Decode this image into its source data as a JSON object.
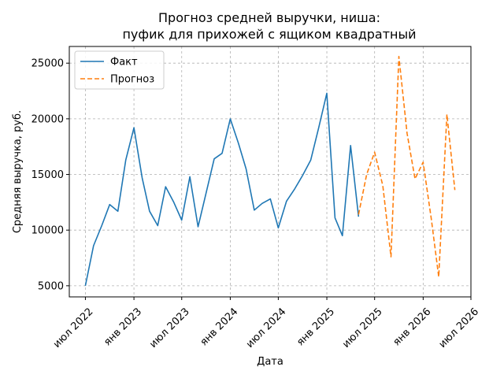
{
  "chart_data": {
    "type": "line",
    "title_line1": "Прогноз средней выручки, ниша:",
    "title_line2": "пуфик для прихожей с ящиком квадратный",
    "xlabel": "Дата",
    "ylabel": "Средняя выручка, руб.",
    "x_ticks": [
      {
        "date": "2022-07-01",
        "label": "июл 2022"
      },
      {
        "date": "2023-01-01",
        "label": "янв 2023"
      },
      {
        "date": "2023-07-01",
        "label": "июл 2023"
      },
      {
        "date": "2024-01-01",
        "label": "янв 2024"
      },
      {
        "date": "2024-07-01",
        "label": "июл 2024"
      },
      {
        "date": "2025-01-01",
        "label": "янв 2025"
      },
      {
        "date": "2025-07-01",
        "label": "июл 2025"
      },
      {
        "date": "2026-01-01",
        "label": "янв 2026"
      },
      {
        "date": "2026-07-01",
        "label": "июл 2026"
      }
    ],
    "y_ticks": [
      5000,
      10000,
      15000,
      20000,
      25000
    ],
    "xlim": [
      "2022-05-01",
      "2026-07-01"
    ],
    "ylim": [
      4000,
      26500
    ],
    "grid": true,
    "legend_position": "top-left",
    "series": [
      {
        "name": "Факт",
        "color": "#1f77b4",
        "style": "solid",
        "x": [
          "2022-07-01",
          "2022-08-01",
          "2022-09-01",
          "2022-10-01",
          "2022-11-01",
          "2022-12-01",
          "2023-01-01",
          "2023-02-01",
          "2023-03-01",
          "2023-04-01",
          "2023-05-01",
          "2023-06-01",
          "2023-07-01",
          "2023-08-01",
          "2023-09-01",
          "2023-10-01",
          "2023-11-01",
          "2023-12-01",
          "2024-01-01",
          "2024-02-01",
          "2024-03-01",
          "2024-04-01",
          "2024-05-01",
          "2024-06-01",
          "2024-07-01",
          "2024-08-01",
          "2024-09-01",
          "2024-10-01",
          "2024-11-01",
          "2024-12-01",
          "2025-01-01",
          "2025-02-01",
          "2025-03-01",
          "2025-04-01",
          "2025-05-01"
        ],
        "y": [
          5000,
          8600,
          10400,
          12300,
          11700,
          16300,
          19200,
          14700,
          11700,
          10400,
          13900,
          12500,
          10900,
          14800,
          10300,
          13300,
          16400,
          16900,
          20000,
          17800,
          15500,
          11800,
          12400,
          12800,
          10200,
          12600,
          13700,
          14900,
          16300,
          19200,
          22300,
          11100,
          9500,
          17600,
          11200
        ]
      },
      {
        "name": "Прогноз",
        "color": "#ff7f0e",
        "style": "dashed",
        "x": [
          "2025-05-01",
          "2025-06-01",
          "2025-07-01",
          "2025-08-01",
          "2025-09-01",
          "2025-10-01",
          "2025-11-01",
          "2025-12-01",
          "2026-01-01",
          "2026-02-01",
          "2026-03-01",
          "2026-04-01",
          "2026-05-01"
        ],
        "y": [
          11400,
          15000,
          17000,
          14000,
          7600,
          25600,
          18700,
          14600,
          16100,
          11000,
          5800,
          20400,
          13600
        ]
      }
    ]
  }
}
